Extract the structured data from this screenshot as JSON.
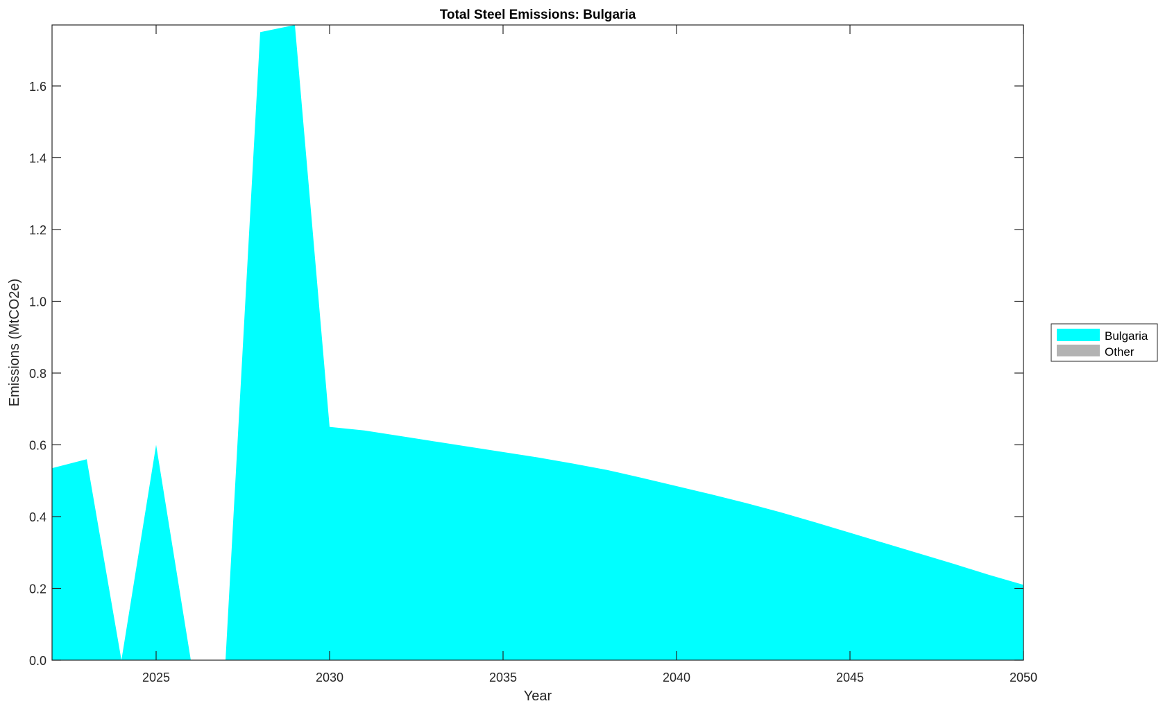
{
  "chart_data": {
    "type": "area",
    "title": "Total Steel Emissions: Bulgaria",
    "xlabel": "Year",
    "ylabel": "Emissions (MtCO2e)",
    "xlim": [
      2022,
      2050
    ],
    "ylim": [
      0,
      1.77
    ],
    "xticks": [
      2025,
      2030,
      2035,
      2040,
      2045,
      2050
    ],
    "yticks": [
      "0.0",
      "0.2",
      "0.4",
      "0.6",
      "0.8",
      "1.0",
      "1.2",
      "1.4",
      "1.6"
    ],
    "grid": false,
    "legend_placement": "right",
    "x": [
      2022,
      2023,
      2024,
      2025,
      2026,
      2027,
      2028,
      2029,
      2030,
      2031,
      2032,
      2033,
      2034,
      2035,
      2036,
      2037,
      2038,
      2039,
      2040,
      2041,
      2042,
      2043,
      2044,
      2045,
      2046,
      2047,
      2048,
      2049,
      2050
    ],
    "series": [
      {
        "name": "Bulgaria",
        "color": "#00ffff",
        "values": [
          0.535,
          0.56,
          0,
          0.6,
          0,
          0,
          1.75,
          1.77,
          0.65,
          0.64,
          0.625,
          0.61,
          0.595,
          0.58,
          0.565,
          0.548,
          0.53,
          0.508,
          0.485,
          0.462,
          0.438,
          0.412,
          0.384,
          0.355,
          0.326,
          0.297,
          0.268,
          0.238,
          0.21
        ]
      },
      {
        "name": "Other",
        "color": "#b3b3b3",
        "values": [
          0,
          0,
          0,
          0,
          0,
          0,
          0,
          0,
          0,
          0,
          0,
          0,
          0,
          0,
          0,
          0,
          0,
          0,
          0,
          0,
          0,
          0,
          0,
          0,
          0,
          0,
          0,
          0,
          0
        ]
      }
    ]
  }
}
